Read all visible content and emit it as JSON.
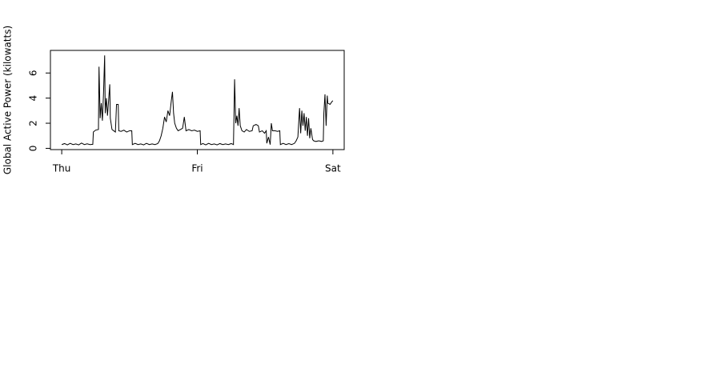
{
  "chart_data": {
    "type": "line",
    "ylabel": "Global Active Power (kilowatts)",
    "x": [
      0,
      0.5,
      1,
      1.5,
      2,
      2.5,
      3,
      3.5,
      4,
      4.5,
      5,
      5.5,
      5.6,
      6,
      6.5,
      6.6,
      6.8,
      7,
      7.2,
      7.4,
      7.6,
      7.7,
      7.9,
      8.1,
      8.3,
      8.5,
      8.6,
      8.9,
      9.2,
      9.5,
      9.7,
      10,
      10.1,
      10.5,
      11,
      11.5,
      12,
      12.4,
      12.5,
      13,
      13.5,
      14,
      14.5,
      15,
      15.5,
      16,
      16.5,
      17,
      17.3,
      17.6,
      17.9,
      18.2,
      18.5,
      18.8,
      19.1,
      19.4,
      19.6,
      19.8,
      20,
      20.3,
      20.6,
      21,
      21.4,
      21.7,
      22,
      22.5,
      23,
      23.5,
      24,
      24.5,
      24.6,
      25,
      25.5,
      26,
      26.5,
      27,
      27.5,
      28,
      28.5,
      29,
      29.5,
      30,
      30.4,
      30.6,
      30.8,
      31,
      31.2,
      31.4,
      31.6,
      31.9,
      32.3,
      32.7,
      33.2,
      33.7,
      33.9,
      34.4,
      34.8,
      35,
      35.5,
      35.9,
      36.2,
      36.3,
      36.6,
      36.9,
      37.1,
      37.3,
      37.8,
      38.2,
      38.6,
      38.7,
      39.2,
      39.7,
      40.2,
      40.7,
      41.2,
      41.5,
      41.8,
      42.1,
      42.3,
      42.5,
      42.7,
      42.9,
      43.1,
      43.3,
      43.5,
      43.7,
      43.9,
      44.1,
      44.4,
      44.6,
      45,
      45.5,
      46,
      46.3,
      46.4,
      46.6,
      46.8,
      47,
      47.1,
      47.5,
      47.8,
      48
    ],
    "series": [
      {
        "color": "#000000",
        "values": [
          0.3,
          0.38,
          0.28,
          0.4,
          0.3,
          0.35,
          0.28,
          0.42,
          0.3,
          0.36,
          0.3,
          0.32,
          1.3,
          1.45,
          1.5,
          6.5,
          2.4,
          3.6,
          2.2,
          4.4,
          7.4,
          2.8,
          4.0,
          2.6,
          3.8,
          5.1,
          2.4,
          1.5,
          1.4,
          1.3,
          3.5,
          3.5,
          1.4,
          1.35,
          1.45,
          1.3,
          1.4,
          1.4,
          0.3,
          0.4,
          0.3,
          0.35,
          0.28,
          0.4,
          0.3,
          0.35,
          0.3,
          0.38,
          0.6,
          1.0,
          1.6,
          2.5,
          2.1,
          3.0,
          2.6,
          3.8,
          4.5,
          2.8,
          2.0,
          1.6,
          1.4,
          1.5,
          1.6,
          2.5,
          1.4,
          1.5,
          1.4,
          1.45,
          1.35,
          1.4,
          0.3,
          0.38,
          0.28,
          0.4,
          0.3,
          0.35,
          0.28,
          0.38,
          0.3,
          0.35,
          0.3,
          0.38,
          0.3,
          5.5,
          2.0,
          2.6,
          1.8,
          3.2,
          1.8,
          1.4,
          1.3,
          1.5,
          1.35,
          1.4,
          1.8,
          1.9,
          1.8,
          1.3,
          1.4,
          1.2,
          1.4,
          0.4,
          0.9,
          0.3,
          2.0,
          1.4,
          1.4,
          1.35,
          1.4,
          0.3,
          0.4,
          0.3,
          0.38,
          0.3,
          0.4,
          0.6,
          0.9,
          3.2,
          1.2,
          3.0,
          1.8,
          2.8,
          1.4,
          2.5,
          1.0,
          2.4,
          0.8,
          1.6,
          0.7,
          0.6,
          0.55,
          0.6,
          0.55,
          0.6,
          2.8,
          4.3,
          1.8,
          4.2,
          3.6,
          3.5,
          3.7,
          3.8
        ]
      }
    ],
    "xlim": [
      -2,
      50
    ],
    "xticks": [
      {
        "value": 0,
        "label": "Thu"
      },
      {
        "value": 24,
        "label": "Fri"
      },
      {
        "value": 48,
        "label": "Sat"
      }
    ],
    "ylim": [
      -0.1,
      7.8
    ],
    "yticks": [
      0,
      2,
      4,
      6
    ]
  }
}
